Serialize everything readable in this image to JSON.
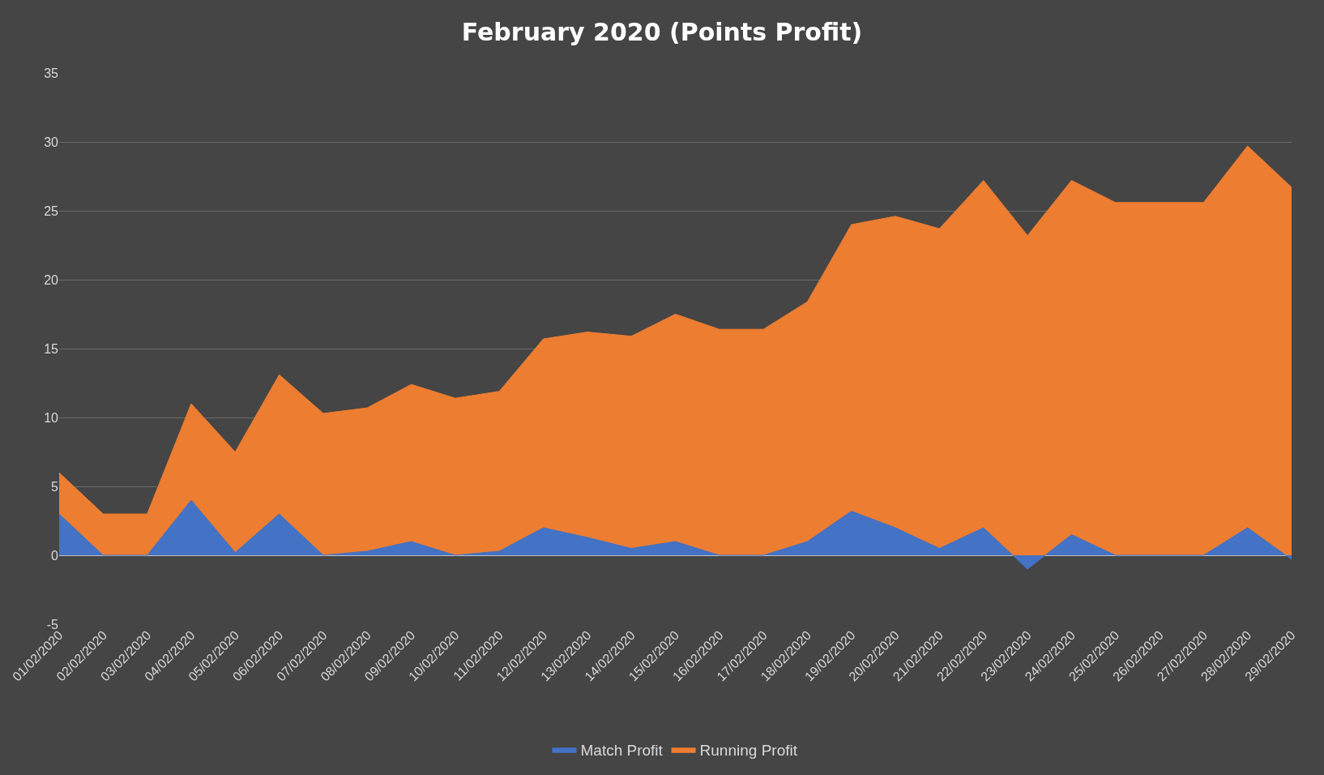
{
  "chart_data": {
    "type": "area",
    "title": "February 2020 (Points Profit)",
    "categories": [
      "01/02/2020",
      "02/02/2020",
      "03/02/2020",
      "04/02/2020",
      "05/02/2020",
      "06/02/2020",
      "07/02/2020",
      "08/02/2020",
      "09/02/2020",
      "10/02/2020",
      "11/02/2020",
      "12/02/2020",
      "13/02/2020",
      "14/02/2020",
      "15/02/2020",
      "16/02/2020",
      "17/02/2020",
      "18/02/2020",
      "19/02/2020",
      "20/02/2020",
      "21/02/2020",
      "22/02/2020",
      "23/02/2020",
      "24/02/2020",
      "25/02/2020",
      "26/02/2020",
      "27/02/2020",
      "28/02/2020",
      "29/02/2020"
    ],
    "series": [
      {
        "name": "Match Profit",
        "color": "#4472c4",
        "values": [
          3,
          0,
          0,
          4,
          0.2,
          3,
          0,
          0.3,
          1,
          0,
          0.3,
          2,
          1.3,
          0.5,
          1,
          0,
          0,
          1,
          3.2,
          2,
          0.5,
          2,
          -1,
          1.5,
          0,
          0,
          0,
          2,
          -0.3
        ]
      },
      {
        "name": "Running Profit",
        "color": "#ed7d31",
        "values": [
          6,
          3,
          3,
          11,
          7.5,
          13.1,
          10.3,
          10.7,
          12.4,
          11.4,
          11.9,
          15.7,
          16.2,
          15.9,
          17.5,
          16.4,
          16.4,
          18.4,
          24,
          24.6,
          23.7,
          27.2,
          23.2,
          27.2,
          25.6,
          25.6,
          25.6,
          29.7,
          26.7
        ]
      }
    ],
    "ylim": [
      -5,
      35
    ],
    "yticks": [
      -5,
      0,
      5,
      10,
      15,
      20,
      25,
      30,
      35
    ],
    "grid": "y",
    "legend": "bottom"
  }
}
